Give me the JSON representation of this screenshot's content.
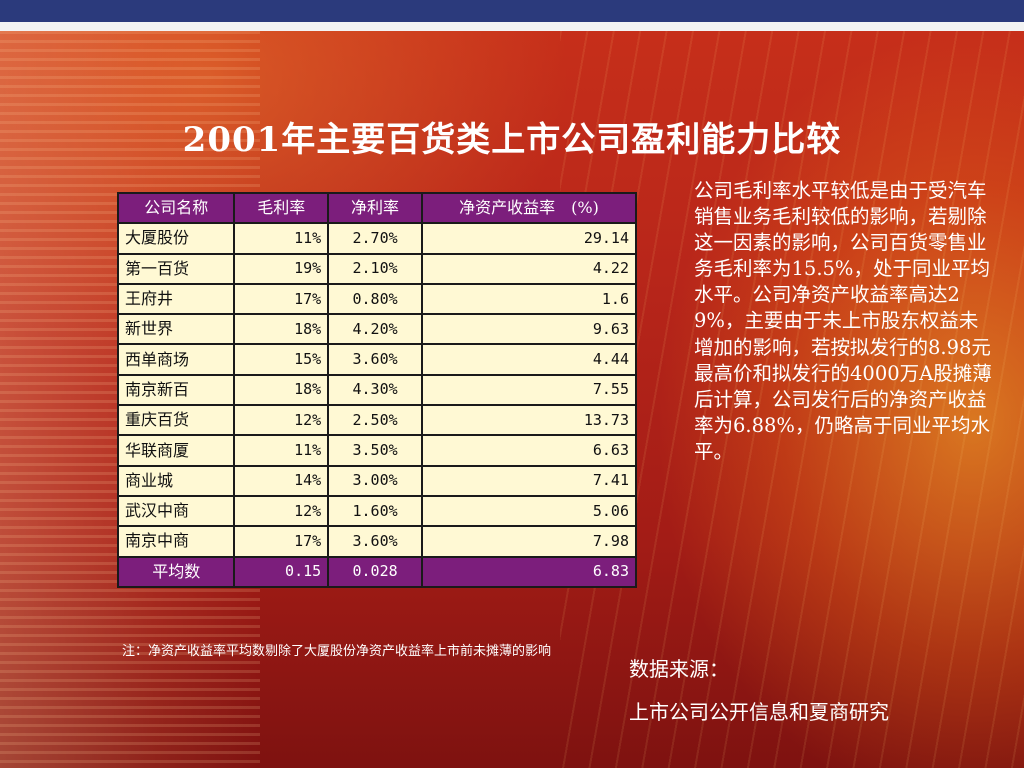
{
  "title": "2001年主要百货类上市公司盈利能力比较",
  "table": {
    "headers": [
      "公司名称",
      "毛利率",
      "净利率",
      "净资产收益率　(%)"
    ],
    "rows": [
      {
        "name": "大厦股份",
        "gross": "11%",
        "net": "2.70%",
        "roe": "29.14"
      },
      {
        "name": "第一百货",
        "gross": "19%",
        "net": "2.10%",
        "roe": "4.22"
      },
      {
        "name": "王府井",
        "gross": "17%",
        "net": "0.80%",
        "roe": "1.6"
      },
      {
        "name": "新世界",
        "gross": "18%",
        "net": "4.20%",
        "roe": "9.63"
      },
      {
        "name": "西单商场",
        "gross": "15%",
        "net": "3.60%",
        "roe": "4.44"
      },
      {
        "name": "南京新百",
        "gross": "18%",
        "net": "4.30%",
        "roe": "7.55"
      },
      {
        "name": "重庆百货",
        "gross": "12%",
        "net": "2.50%",
        "roe": "13.73"
      },
      {
        "name": "华联商厦",
        "gross": "11%",
        "net": "3.50%",
        "roe": "6.63"
      },
      {
        "name": "商业城",
        "gross": "14%",
        "net": "3.00%",
        "roe": "7.41"
      },
      {
        "name": "武汉中商",
        "gross": "12%",
        "net": "1.60%",
        "roe": "5.06"
      },
      {
        "name": "南京中商",
        "gross": "17%",
        "net": "3.60%",
        "roe": "7.98"
      }
    ],
    "average": {
      "name": "平均数",
      "gross": "0.15",
      "net": "0.028",
      "roe": "6.83"
    }
  },
  "note": "注：净资产收益率平均数剔除了大厦股份净资产收益率上市前未摊薄的影响",
  "commentary": "公司毛利率水平较低是由于受汽车销售业务毛利较低的影响，若剔除这一因素的影响，公司百货零售业务毛利率为15.5%，处于同业平均水平。公司净资产收益率高达29%，主要由于未上市股东权益未增加的影响，若按拟发行的8.98元最高价和拟发行的4000万A股摊薄后计算，公司发行后的净资产收益率为6.88%，仍略高于同业平均水平。",
  "source": {
    "label": "数据来源：",
    "value": "上市公司公开信息和夏商研究"
  },
  "colors": {
    "top_bar": "#2b3a7c",
    "header_bg": "#7c1e7c",
    "cell_bg": "#fff9d4",
    "background": "#b8261a"
  }
}
